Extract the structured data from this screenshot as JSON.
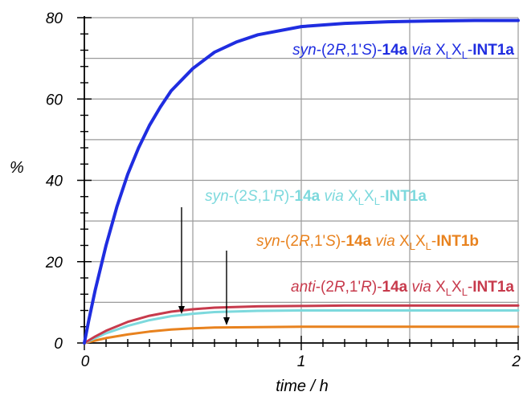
{
  "chart_data": {
    "type": "line",
    "xlabel": "time / h",
    "ylabel": "%",
    "xlim": [
      0,
      2
    ],
    "ylim": [
      0,
      80
    ],
    "x_ticks": [
      "0",
      "1",
      "2"
    ],
    "y_ticks": [
      "0",
      "20",
      "40",
      "60",
      "80"
    ],
    "grid": true,
    "series": [
      {
        "key": "blue",
        "color": "#1f2de0",
        "label_parts": [
          {
            "t": "syn",
            "s": "i"
          },
          {
            "t": "-(2",
            "s": "n"
          },
          {
            "t": "R",
            "s": "i"
          },
          {
            "t": ",1'",
            "s": "n"
          },
          {
            "t": "S",
            "s": "i"
          },
          {
            "t": ")-",
            "s": "n"
          },
          {
            "t": "14a",
            "s": "b"
          },
          {
            "t": " ",
            "s": "n"
          },
          {
            "t": "via",
            "s": "i"
          },
          {
            "t": " X",
            "s": "n"
          },
          {
            "t": "L",
            "s": "sub"
          },
          {
            "t": "X",
            "s": "n"
          },
          {
            "t": "L",
            "s": "sub"
          },
          {
            "t": "-",
            "s": "n"
          },
          {
            "t": "INT1a",
            "s": "b"
          }
        ],
        "x": [
          0,
          0.02,
          0.05,
          0.1,
          0.15,
          0.2,
          0.25,
          0.3,
          0.35,
          0.4,
          0.5,
          0.6,
          0.7,
          0.8,
          1.0,
          1.2,
          1.4,
          1.6,
          1.8,
          2.0
        ],
        "y": [
          0,
          5.5,
          13,
          24,
          33.5,
          41.5,
          48,
          53.5,
          58,
          62,
          67.5,
          71.5,
          74,
          75.8,
          77.8,
          78.6,
          79.0,
          79.2,
          79.3,
          79.3
        ]
      },
      {
        "key": "cyan",
        "color": "#7dd9dd",
        "label_parts": [
          {
            "t": "syn",
            "s": "i"
          },
          {
            "t": "-(2",
            "s": "n"
          },
          {
            "t": "S",
            "s": "i"
          },
          {
            "t": ",1'",
            "s": "n"
          },
          {
            "t": "R",
            "s": "i"
          },
          {
            "t": ")-",
            "s": "n"
          },
          {
            "t": "14a",
            "s": "b"
          },
          {
            "t": " ",
            "s": "n"
          },
          {
            "t": "via",
            "s": "i"
          },
          {
            "t": " X",
            "s": "n"
          },
          {
            "t": "L",
            "s": "sub"
          },
          {
            "t": "X",
            "s": "n"
          },
          {
            "t": "L",
            "s": "sub"
          },
          {
            "t": "-",
            "s": "n"
          },
          {
            "t": "INT1a",
            "s": "b"
          }
        ],
        "x": [
          0,
          0.05,
          0.1,
          0.2,
          0.3,
          0.4,
          0.5,
          0.6,
          0.8,
          1.0,
          1.2,
          1.5,
          2.0
        ],
        "y": [
          0,
          1.2,
          2.4,
          4.2,
          5.6,
          6.6,
          7.2,
          7.6,
          7.9,
          8.0,
          8.0,
          8.0,
          8.0
        ]
      },
      {
        "key": "orange",
        "color": "#e8821e",
        "label_parts": [
          {
            "t": "syn",
            "s": "i"
          },
          {
            "t": "-(2",
            "s": "n"
          },
          {
            "t": "R",
            "s": "i"
          },
          {
            "t": ",1'",
            "s": "n"
          },
          {
            "t": "S",
            "s": "i"
          },
          {
            "t": ")-",
            "s": "n"
          },
          {
            "t": "14a",
            "s": "b"
          },
          {
            "t": " ",
            "s": "n"
          },
          {
            "t": "via",
            "s": "i"
          },
          {
            "t": " X",
            "s": "n"
          },
          {
            "t": "L",
            "s": "sub"
          },
          {
            "t": "X",
            "s": "n"
          },
          {
            "t": "L",
            "s": "sub"
          },
          {
            "t": "-",
            "s": "n"
          },
          {
            "t": "INT1b",
            "s": "b"
          }
        ],
        "x": [
          0,
          0.05,
          0.1,
          0.2,
          0.3,
          0.4,
          0.5,
          0.6,
          0.8,
          1.0,
          1.5,
          2.0
        ],
        "y": [
          0,
          0.6,
          1.2,
          2.1,
          2.8,
          3.3,
          3.6,
          3.8,
          3.9,
          4.0,
          4.0,
          4.0
        ]
      },
      {
        "key": "red",
        "color": "#c73a4c",
        "label_parts": [
          {
            "t": "anti",
            "s": "i"
          },
          {
            "t": "-(2",
            "s": "n"
          },
          {
            "t": "R",
            "s": "i"
          },
          {
            "t": ",1'",
            "s": "n"
          },
          {
            "t": "R",
            "s": "i"
          },
          {
            "t": ")-",
            "s": "n"
          },
          {
            "t": "14a",
            "s": "b"
          },
          {
            "t": " ",
            "s": "n"
          },
          {
            "t": "via",
            "s": "i"
          },
          {
            "t": " X",
            "s": "n"
          },
          {
            "t": "L",
            "s": "sub"
          },
          {
            "t": "X",
            "s": "n"
          },
          {
            "t": "L",
            "s": "sub"
          },
          {
            "t": "-",
            "s": "n"
          },
          {
            "t": "INT1a",
            "s": "b"
          }
        ],
        "x": [
          0,
          0.05,
          0.1,
          0.2,
          0.3,
          0.4,
          0.5,
          0.6,
          0.8,
          1.0,
          1.2,
          1.5,
          2.0
        ],
        "y": [
          0,
          1.6,
          3.0,
          5.2,
          6.7,
          7.7,
          8.3,
          8.7,
          9.0,
          9.1,
          9.2,
          9.2,
          9.2
        ]
      }
    ]
  }
}
